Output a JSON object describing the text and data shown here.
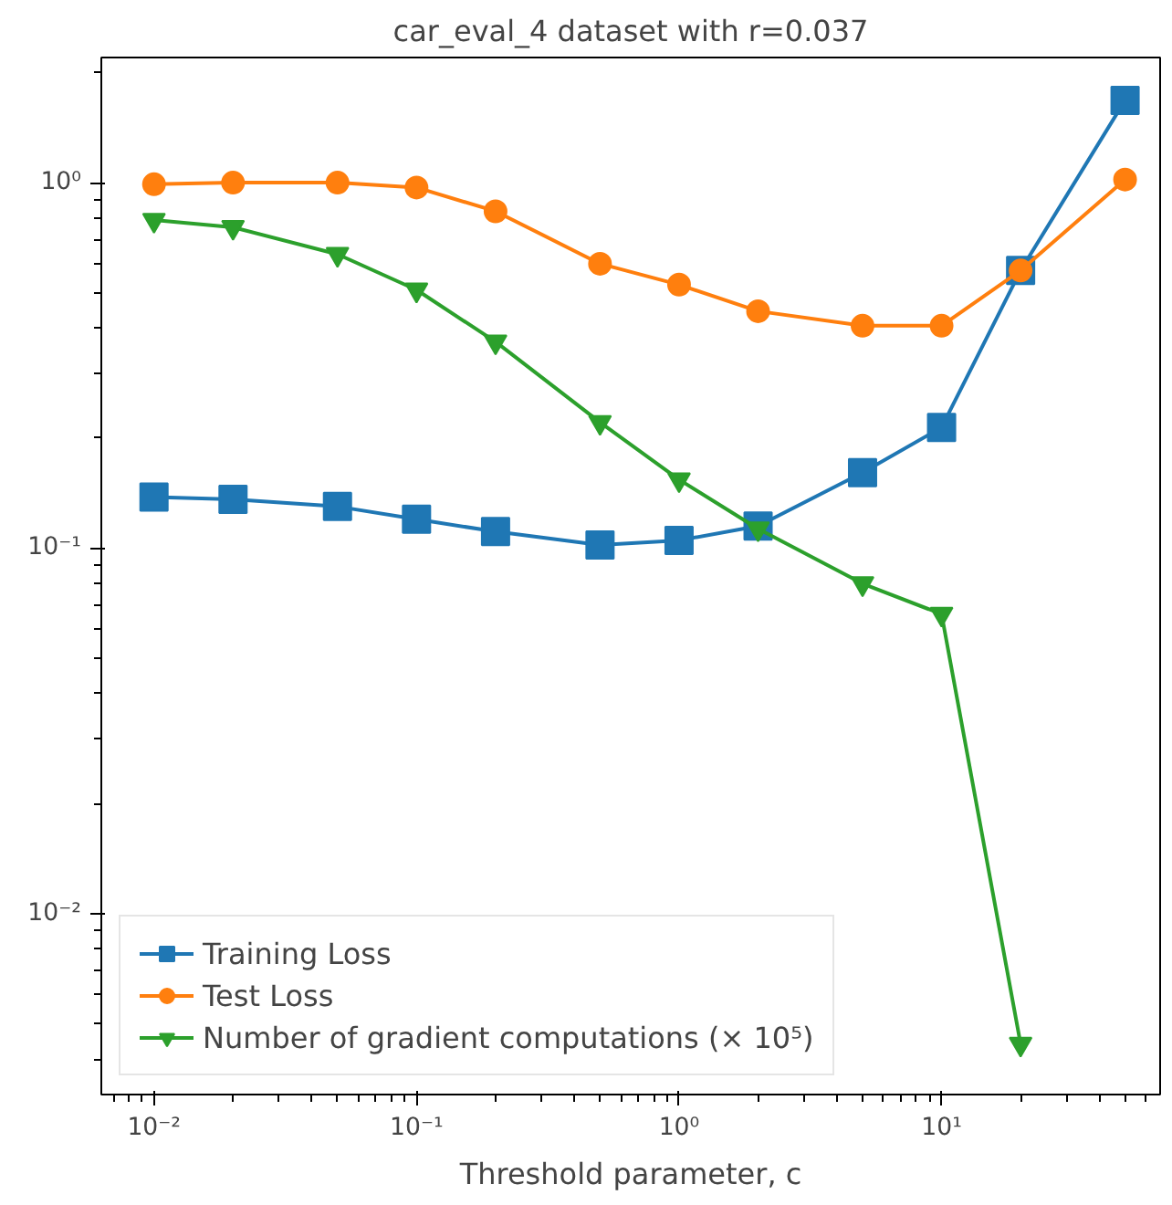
{
  "chart_data": {
    "type": "line",
    "title": "car_eval_4 dataset with r=0.037",
    "xlabel": "Threshold parameter, c",
    "log": "xy",
    "grid": false,
    "legend": "bottom left",
    "line_style": "solid",
    "x": [
      0.01,
      0.02,
      0.05,
      0.1,
      0.2,
      0.5,
      1,
      2,
      5,
      10,
      20,
      50
    ],
    "xlim": [
      0.0063,
      68
    ],
    "ylim": [
      0.0032,
      2.2
    ],
    "xticks": [
      {
        "value": 0.01,
        "label": "10⁻²"
      },
      {
        "value": 0.1,
        "label": "10⁻¹"
      },
      {
        "value": 1,
        "label": "10⁰"
      },
      {
        "value": 10,
        "label": "10¹"
      }
    ],
    "yticks": [
      {
        "value": 0.01,
        "label": "10⁻²"
      },
      {
        "value": 0.1,
        "label": "10⁻¹"
      },
      {
        "value": 1,
        "label": "10⁰"
      }
    ],
    "series": [
      {
        "name": "Training Loss",
        "color": "#1f77b4",
        "marker": "square",
        "values": [
          0.138,
          0.136,
          0.13,
          0.12,
          0.111,
          0.102,
          0.105,
          0.115,
          0.161,
          0.214,
          0.575,
          1.68
        ]
      },
      {
        "name": "Test Loss",
        "color": "#ff7f0e",
        "marker": "circle",
        "values": [
          0.99,
          1.0,
          1.0,
          0.97,
          0.835,
          0.6,
          0.526,
          0.445,
          0.406,
          0.406,
          0.575,
          1.02
        ]
      },
      {
        "name": "Number of gradient computations (× 10⁵)",
        "color": "#2ca02c",
        "marker": "triangle",
        "values": [
          0.79,
          0.755,
          0.637,
          0.509,
          0.367,
          0.221,
          0.154,
          0.113,
          0.08,
          0.066,
          0.0044,
          null
        ]
      }
    ]
  }
}
